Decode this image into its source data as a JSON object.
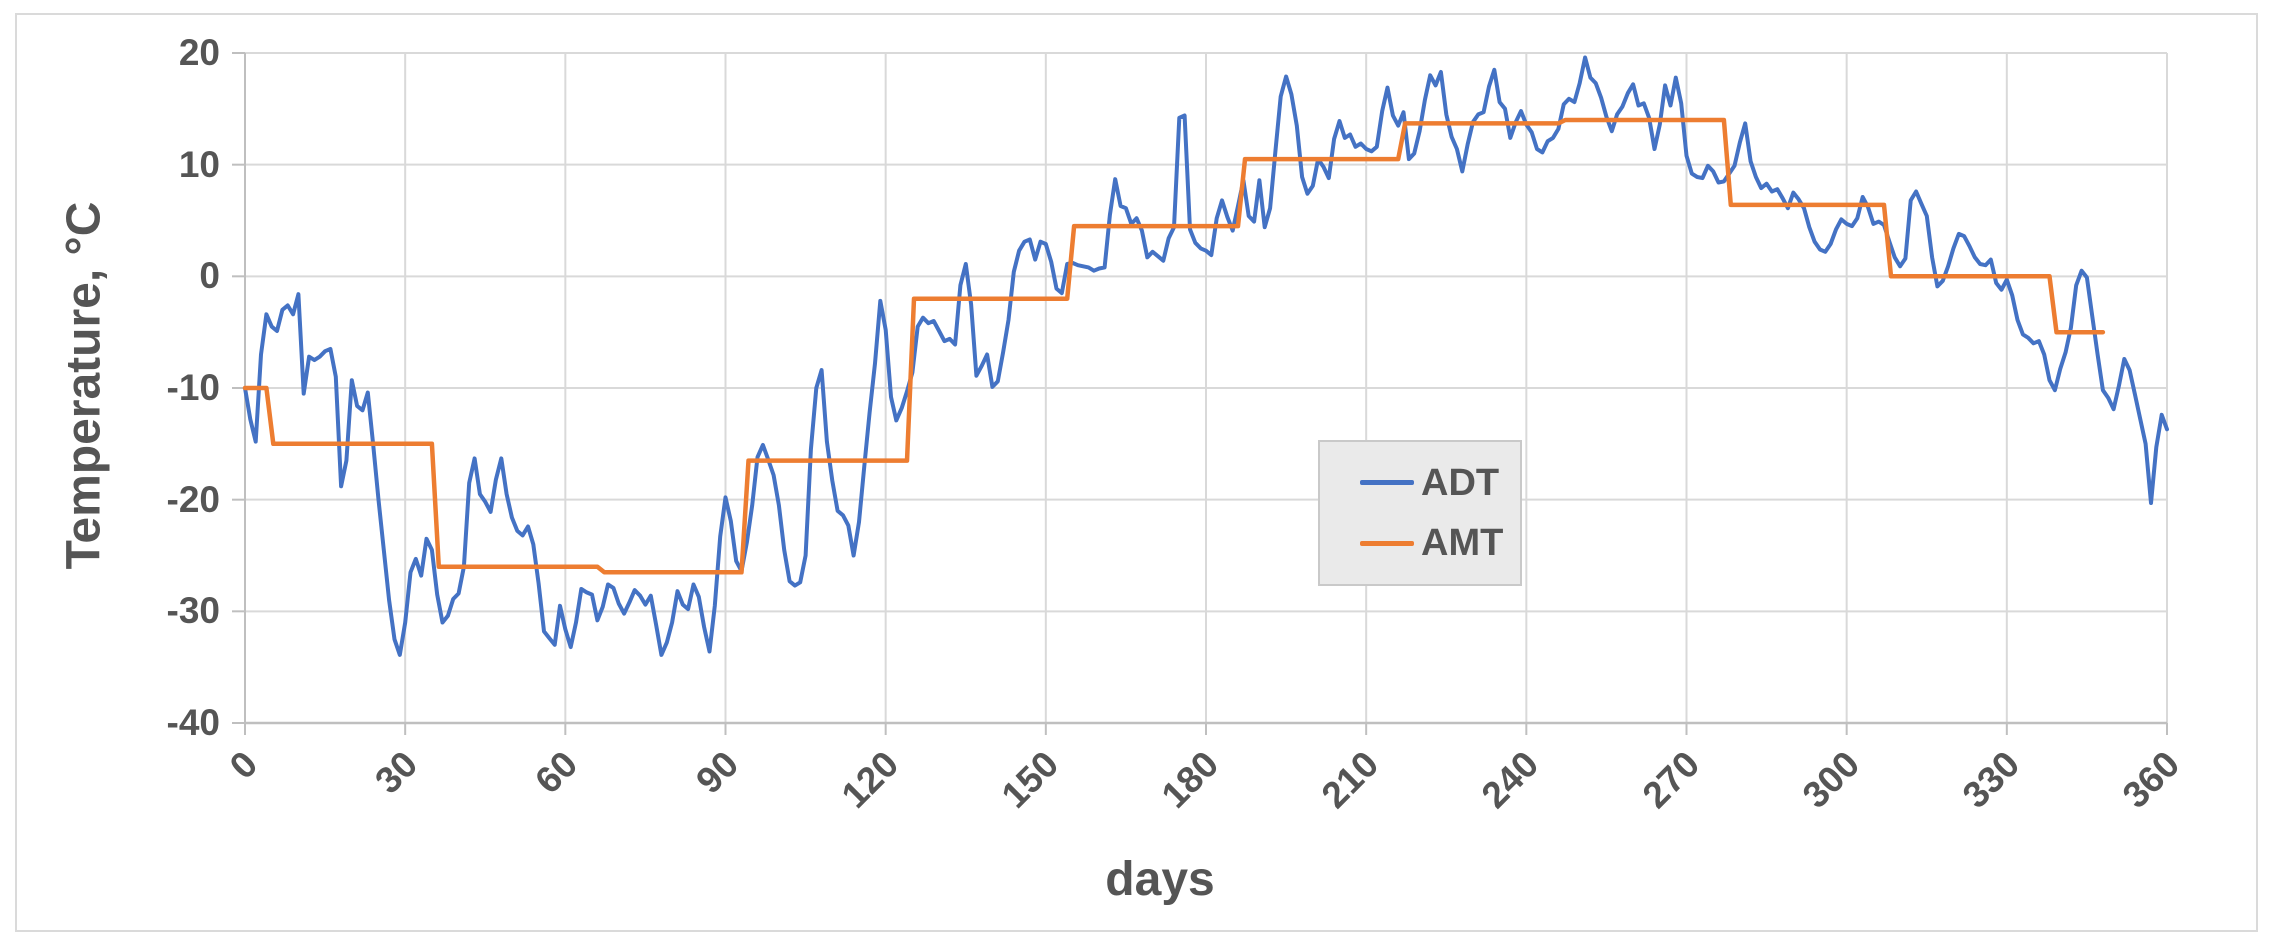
{
  "chart_data": {
    "type": "line",
    "title": "",
    "xlabel": "days",
    "ylabel": "Temperature, °C",
    "xlim": [
      0,
      360
    ],
    "ylim": [
      -40,
      20
    ],
    "x_ticks": [
      0,
      30,
      60,
      90,
      120,
      150,
      180,
      210,
      240,
      270,
      300,
      330,
      360
    ],
    "y_ticks": [
      20,
      10,
      0,
      -10,
      -20,
      -30,
      -40
    ],
    "grid": true,
    "legend_position": "center-right",
    "series": [
      {
        "name": "ADT",
        "color": "#4472C4",
        "stroke_width": 4,
        "x_start": 0,
        "x_step": 1,
        "values": [
          -10.0,
          -12.8,
          -14.8,
          -7.0,
          -3.4,
          -4.5,
          -4.9,
          -3.0,
          -2.6,
          -3.4,
          -1.6,
          -10.5,
          -7.2,
          -7.5,
          -7.2,
          -6.7,
          -6.5,
          -9.0,
          -18.8,
          -16.5,
          -9.3,
          -11.6,
          -12.0,
          -10.4,
          -15.0,
          -20.0,
          -24.5,
          -29.0,
          -32.5,
          -33.9,
          -31.0,
          -26.5,
          -25.3,
          -26.8,
          -23.5,
          -24.5,
          -28.5,
          -31.0,
          -30.4,
          -28.9,
          -28.4,
          -26.0,
          -18.5,
          -16.3,
          -19.5,
          -20.2,
          -21.1,
          -18.2,
          -16.3,
          -19.5,
          -21.6,
          -22.8,
          -23.2,
          -22.4,
          -24.0,
          -27.5,
          -31.8,
          -32.4,
          -33.0,
          -29.5,
          -31.6,
          -33.2,
          -31.0,
          -28.0,
          -28.3,
          -28.5,
          -30.8,
          -29.6,
          -27.6,
          -27.9,
          -29.3,
          -30.2,
          -29.2,
          -28.1,
          -28.6,
          -29.4,
          -28.6,
          -31.2,
          -33.9,
          -32.8,
          -31.0,
          -28.2,
          -29.4,
          -29.8,
          -27.6,
          -28.7,
          -31.4,
          -33.6,
          -29.5,
          -23.3,
          -19.8,
          -21.9,
          -25.5,
          -26.4,
          -23.8,
          -20.5,
          -16.2,
          -15.1,
          -16.4,
          -17.8,
          -20.5,
          -24.5,
          -27.3,
          -27.7,
          -27.4,
          -25.0,
          -15.5,
          -10.0,
          -8.4,
          -14.8,
          -18.3,
          -21.0,
          -21.4,
          -22.3,
          -25.0,
          -22.0,
          -17.0,
          -12.2,
          -7.8,
          -2.2,
          -4.8,
          -10.8,
          -12.9,
          -11.8,
          -10.3,
          -8.6,
          -4.5,
          -3.7,
          -4.2,
          -4.0,
          -4.9,
          -5.8,
          -5.6,
          -6.1,
          -0.8,
          1.1,
          -2.5,
          -8.9,
          -8.0,
          -7.0,
          -9.9,
          -9.4,
          -6.8,
          -3.9,
          0.4,
          2.3,
          3.1,
          3.3,
          1.5,
          3.1,
          2.9,
          1.3,
          -1.1,
          -1.5,
          1.1,
          1.2,
          1.0,
          0.9,
          0.8,
          0.5,
          0.7,
          0.8,
          5.5,
          8.7,
          6.3,
          6.1,
          4.7,
          5.2,
          4.1,
          1.7,
          2.2,
          1.8,
          1.4,
          3.4,
          4.4,
          14.2,
          14.4,
          4.2,
          3.0,
          2.5,
          2.3,
          1.9,
          5.2,
          6.8,
          5.3,
          4.1,
          6.3,
          8.6,
          5.4,
          4.9,
          8.6,
          4.4,
          6.1,
          11.2,
          16.1,
          17.9,
          16.3,
          13.5,
          8.9,
          7.4,
          8.1,
          10.5,
          9.8,
          8.8,
          12.3,
          13.9,
          12.4,
          12.7,
          11.6,
          11.9,
          11.4,
          11.2,
          11.6,
          14.8,
          16.9,
          14.4,
          13.5,
          14.7,
          10.5,
          11.0,
          13.0,
          15.8,
          18.0,
          17.1,
          18.3,
          14.5,
          12.5,
          11.4,
          9.4,
          11.8,
          13.8,
          14.5,
          14.7,
          17.0,
          18.5,
          15.6,
          15.0,
          12.4,
          13.8,
          14.8,
          13.6,
          12.9,
          11.4,
          11.1,
          12.1,
          12.4,
          13.2,
          15.4,
          15.9,
          15.6,
          17.3,
          19.6,
          17.8,
          17.3,
          16.0,
          14.3,
          13.0,
          14.5,
          15.2,
          16.4,
          17.2,
          15.3,
          15.5,
          14.2,
          11.4,
          13.6,
          17.1,
          15.3,
          17.8,
          15.5,
          10.8,
          9.2,
          8.9,
          8.8,
          9.9,
          9.4,
          8.4,
          8.5,
          9.2,
          9.9,
          12.0,
          13.7,
          10.3,
          8.9,
          7.9,
          8.3,
          7.6,
          7.8,
          7.0,
          6.1,
          7.5,
          6.9,
          6.1,
          4.4,
          3.1,
          2.4,
          2.2,
          2.9,
          4.2,
          5.1,
          4.7,
          4.5,
          5.2,
          7.1,
          6.2,
          4.7,
          4.9,
          4.6,
          3.1,
          1.7,
          0.9,
          1.6,
          6.8,
          7.6,
          6.5,
          5.4,
          1.7,
          -0.9,
          -0.4,
          0.9,
          2.5,
          3.8,
          3.6,
          2.7,
          1.7,
          1.1,
          1.0,
          1.5,
          -0.6,
          -1.2,
          -0.3,
          -1.7,
          -3.9,
          -5.2,
          -5.5,
          -6.0,
          -5.8,
          -7.0,
          -9.3,
          -10.2,
          -8.3,
          -6.8,
          -4.6,
          -0.8,
          0.5,
          -0.1,
          -3.6,
          -7.0,
          -10.2,
          -10.9,
          -11.9,
          -9.8,
          -7.4,
          -8.4,
          -10.6,
          -12.8,
          -15.0,
          -20.3,
          -15.3,
          -12.4,
          -13.7
        ]
      },
      {
        "name": "AMT",
        "color": "#ED7D31",
        "stroke_width": 4.5,
        "step_segments": [
          [
            0,
            4,
            -10.0
          ],
          [
            4,
            35,
            -15.0
          ],
          [
            35,
            66,
            -26.0
          ],
          [
            66,
            93,
            -26.5
          ],
          [
            93,
            124,
            -16.5
          ],
          [
            124,
            154,
            -2.0
          ],
          [
            154,
            186,
            4.5
          ],
          [
            186,
            216,
            10.5
          ],
          [
            216,
            246,
            13.7
          ],
          [
            246,
            277,
            14.0
          ],
          [
            277,
            307,
            6.4
          ],
          [
            307,
            338,
            0.0
          ],
          [
            338,
            348,
            -5.0
          ]
        ]
      }
    ]
  },
  "legend": {
    "adt_label": "ADT",
    "amt_label": "AMT"
  },
  "styles": {
    "blue": "#4472C4",
    "orange": "#ED7D31",
    "grid_color": "#D9D9D9",
    "axis_color": "#BFBFBF",
    "text_color": "#555555",
    "legend_fill": "#EAEAEA",
    "legend_border": "#C9C9C9"
  }
}
